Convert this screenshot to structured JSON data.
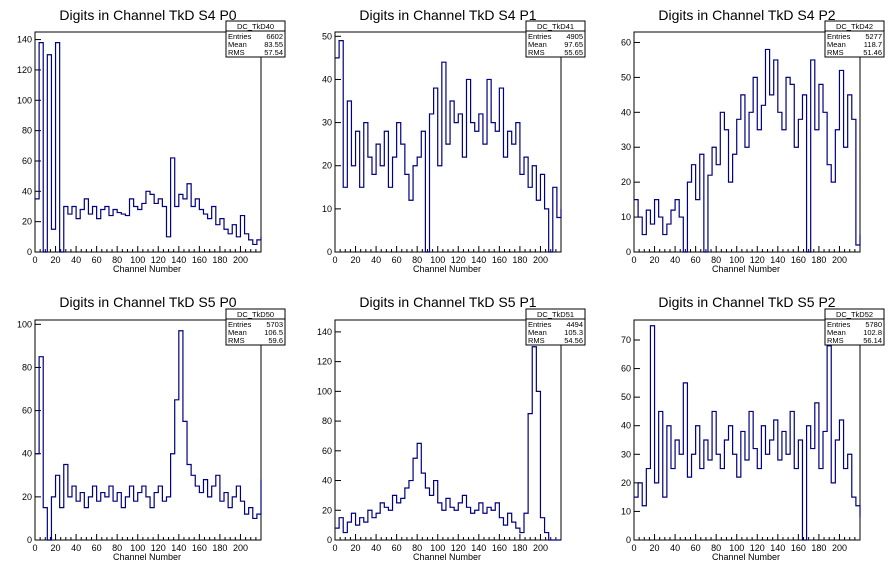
{
  "colors": {
    "line": "#000080",
    "axis": "#000000",
    "background": "#ffffff"
  },
  "chart_data": [
    {
      "type": "line",
      "title": "Digits in Channel TkD S4 P0",
      "xlabel": "Channel Number",
      "xlim": [
        0,
        220
      ],
      "ylim": [
        0,
        145
      ],
      "xticks": [
        0,
        20,
        40,
        60,
        80,
        100,
        120,
        140,
        160,
        180,
        200
      ],
      "yticks": [
        0,
        20,
        40,
        60,
        80,
        100,
        120,
        140
      ],
      "stats": {
        "name": "DC_TkD40",
        "entries_label": "Entries",
        "entries": "6602",
        "mean_label": "Mean",
        "mean": "83.55",
        "rms_label": "RMS",
        "rms": "57.54"
      },
      "series": [
        {
          "x": [
            0,
            4,
            8,
            12,
            16,
            20,
            24,
            28,
            32,
            36,
            40,
            44,
            48,
            52,
            56,
            60,
            64,
            68,
            72,
            76,
            80,
            84,
            88,
            92,
            96,
            100,
            104,
            108,
            112,
            116,
            120,
            124,
            128,
            132,
            136,
            140,
            144,
            148,
            152,
            156,
            160,
            164,
            168,
            172,
            176,
            180,
            184,
            188,
            192,
            196,
            200,
            204,
            208,
            212,
            216,
            220
          ],
          "y": [
            35,
            138,
            0,
            130,
            15,
            138,
            0,
            30,
            25,
            30,
            22,
            28,
            35,
            25,
            30,
            22,
            28,
            30,
            24,
            28,
            26,
            25,
            24,
            35,
            30,
            28,
            32,
            40,
            38,
            32,
            35,
            30,
            10,
            62,
            30,
            38,
            35,
            45,
            30,
            35,
            28,
            25,
            22,
            30,
            18,
            22,
            15,
            12,
            18,
            10,
            24,
            12,
            8,
            5,
            8,
            10
          ]
        }
      ]
    },
    {
      "type": "line",
      "title": "Digits in Channel TkD S4 P1",
      "xlabel": "Channel Number",
      "xlim": [
        0,
        220
      ],
      "ylim": [
        0,
        51
      ],
      "xticks": [
        0,
        20,
        40,
        60,
        80,
        100,
        120,
        140,
        160,
        180,
        200
      ],
      "yticks": [
        0,
        10,
        20,
        30,
        40,
        50
      ],
      "stats": {
        "name": "DC_TkD41",
        "entries_label": "Entries",
        "entries": "4905",
        "mean_label": "Mean",
        "mean": "97.65",
        "rms_label": "RMS",
        "rms": "55.65"
      },
      "series": [
        {
          "x": [
            0,
            4,
            8,
            12,
            16,
            20,
            24,
            28,
            32,
            36,
            40,
            44,
            48,
            52,
            56,
            60,
            64,
            68,
            72,
            76,
            80,
            84,
            88,
            92,
            96,
            100,
            104,
            108,
            112,
            116,
            120,
            124,
            128,
            132,
            136,
            140,
            144,
            148,
            152,
            156,
            160,
            164,
            168,
            172,
            176,
            180,
            184,
            188,
            192,
            196,
            200,
            204,
            208,
            212,
            216,
            220
          ],
          "y": [
            45,
            49,
            15,
            35,
            20,
            28,
            15,
            30,
            22,
            18,
            25,
            20,
            28,
            15,
            22,
            30,
            25,
            18,
            12,
            20,
            22,
            28,
            0,
            32,
            38,
            20,
            44,
            25,
            35,
            30,
            32,
            22,
            40,
            30,
            28,
            32,
            25,
            40,
            30,
            28,
            38,
            22,
            28,
            25,
            30,
            18,
            22,
            15,
            20,
            12,
            18,
            10,
            0,
            15,
            8,
            10
          ]
        }
      ]
    },
    {
      "type": "line",
      "title": "Digits in Channel TkD S4 P2",
      "xlabel": "Channel Number",
      "xlim": [
        0,
        220
      ],
      "ylim": [
        0,
        63
      ],
      "xticks": [
        0,
        20,
        40,
        60,
        80,
        100,
        120,
        140,
        160,
        180,
        200
      ],
      "yticks": [
        0,
        10,
        20,
        30,
        40,
        50,
        60
      ],
      "stats": {
        "name": "DC_TkD42",
        "entries_label": "Entries",
        "entries": "5277",
        "mean_label": "Mean",
        "mean": "118.7",
        "rms_label": "RMS",
        "rms": "51.46"
      },
      "series": [
        {
          "x": [
            0,
            4,
            8,
            12,
            16,
            20,
            24,
            28,
            32,
            36,
            40,
            44,
            48,
            52,
            56,
            60,
            64,
            68,
            72,
            76,
            80,
            84,
            88,
            92,
            96,
            100,
            104,
            108,
            112,
            116,
            120,
            124,
            128,
            132,
            136,
            140,
            144,
            148,
            152,
            156,
            160,
            164,
            168,
            172,
            176,
            180,
            184,
            188,
            192,
            196,
            200,
            204,
            208,
            212,
            216,
            220
          ],
          "y": [
            15,
            10,
            5,
            12,
            8,
            15,
            10,
            5,
            8,
            12,
            15,
            10,
            0,
            20,
            25,
            15,
            28,
            0,
            22,
            30,
            25,
            40,
            35,
            20,
            28,
            38,
            45,
            30,
            40,
            50,
            35,
            42,
            58,
            45,
            55,
            40,
            35,
            50,
            48,
            30,
            38,
            45,
            0,
            55,
            35,
            48,
            40,
            25,
            20,
            35,
            52,
            30,
            45,
            38,
            2,
            5
          ]
        }
      ]
    },
    {
      "type": "line",
      "title": "Digits in Channel TkD S5 P0",
      "xlabel": "Channel Number",
      "xlim": [
        0,
        220
      ],
      "ylim": [
        0,
        102
      ],
      "xticks": [
        0,
        20,
        40,
        60,
        80,
        100,
        120,
        140,
        160,
        180,
        200
      ],
      "yticks": [
        0,
        20,
        40,
        60,
        80,
        100
      ],
      "stats": {
        "name": "DC_TkD50",
        "entries_label": "Entries",
        "entries": "5703",
        "mean_label": "Mean",
        "mean": "106.5",
        "rms_label": "RMS",
        "rms": "59.6"
      },
      "series": [
        {
          "x": [
            0,
            4,
            8,
            12,
            16,
            20,
            24,
            28,
            32,
            36,
            40,
            44,
            48,
            52,
            56,
            60,
            64,
            68,
            72,
            76,
            80,
            84,
            88,
            92,
            96,
            100,
            104,
            108,
            112,
            116,
            120,
            124,
            128,
            132,
            136,
            140,
            144,
            148,
            152,
            156,
            160,
            164,
            168,
            172,
            176,
            180,
            184,
            188,
            192,
            196,
            200,
            204,
            208,
            212,
            216,
            220
          ],
          "y": [
            40,
            85,
            15,
            0,
            20,
            30,
            15,
            35,
            20,
            25,
            18,
            22,
            15,
            20,
            25,
            18,
            22,
            20,
            25,
            18,
            22,
            15,
            20,
            25,
            18,
            22,
            25,
            20,
            15,
            22,
            25,
            18,
            20,
            40,
            65,
            97,
            55,
            35,
            30,
            25,
            22,
            28,
            20,
            25,
            30,
            18,
            22,
            15,
            20,
            25,
            18,
            12,
            15,
            10,
            12,
            28
          ]
        }
      ]
    },
    {
      "type": "line",
      "title": "Digits in Channel TkD S5 P1",
      "xlabel": "Channel Number",
      "xlim": [
        0,
        220
      ],
      "ylim": [
        0,
        148
      ],
      "xticks": [
        0,
        20,
        40,
        60,
        80,
        100,
        120,
        140,
        160,
        180,
        200
      ],
      "yticks": [
        0,
        20,
        40,
        60,
        80,
        100,
        120,
        140
      ],
      "stats": {
        "name": "DC_TkD51",
        "entries_label": "Entries",
        "entries": "4494",
        "mean_label": "Mean",
        "mean": "105.3",
        "rms_label": "RMS",
        "rms": "54.56"
      },
      "series": [
        {
          "x": [
            0,
            4,
            8,
            12,
            16,
            20,
            24,
            28,
            32,
            36,
            40,
            44,
            48,
            52,
            56,
            60,
            64,
            68,
            72,
            76,
            80,
            84,
            88,
            92,
            96,
            100,
            104,
            108,
            112,
            116,
            120,
            124,
            128,
            132,
            136,
            140,
            144,
            148,
            152,
            156,
            160,
            164,
            168,
            172,
            176,
            180,
            184,
            188,
            192,
            196,
            200,
            204,
            208,
            212,
            216,
            220
          ],
          "y": [
            8,
            15,
            5,
            12,
            18,
            10,
            15,
            12,
            20,
            15,
            18,
            25,
            22,
            20,
            30,
            25,
            28,
            35,
            40,
            55,
            65,
            45,
            35,
            30,
            40,
            25,
            20,
            28,
            22,
            20,
            25,
            30,
            22,
            18,
            20,
            25,
            18,
            22,
            20,
            25,
            15,
            10,
            18,
            12,
            8,
            5,
            18,
            85,
            130,
            100,
            15,
            5,
            0,
            0,
            0,
            0
          ]
        }
      ]
    },
    {
      "type": "line",
      "title": "Digits in Channel TkD S5 P2",
      "xlabel": "Channel Number",
      "xlim": [
        0,
        220
      ],
      "ylim": [
        0,
        77
      ],
      "xticks": [
        0,
        20,
        40,
        60,
        80,
        100,
        120,
        140,
        160,
        180,
        200
      ],
      "yticks": [
        0,
        10,
        20,
        30,
        40,
        50,
        60,
        70
      ],
      "stats": {
        "name": "DC_TkD52",
        "entries_label": "Entries",
        "entries": "5780",
        "mean_label": "Mean",
        "mean": "102.8",
        "rms_label": "RMS",
        "rms": "56.14"
      },
      "series": [
        {
          "x": [
            0,
            4,
            8,
            12,
            16,
            20,
            24,
            28,
            32,
            36,
            40,
            44,
            48,
            52,
            56,
            60,
            64,
            68,
            72,
            76,
            80,
            84,
            88,
            92,
            96,
            100,
            104,
            108,
            112,
            116,
            120,
            124,
            128,
            132,
            136,
            140,
            144,
            148,
            152,
            156,
            160,
            164,
            168,
            172,
            176,
            180,
            184,
            188,
            192,
            196,
            200,
            204,
            208,
            212,
            216,
            220
          ],
          "y": [
            15,
            20,
            12,
            25,
            75,
            20,
            45,
            15,
            40,
            25,
            35,
            30,
            55,
            22,
            30,
            40,
            25,
            35,
            28,
            45,
            30,
            25,
            35,
            40,
            30,
            22,
            38,
            28,
            45,
            32,
            25,
            40,
            30,
            35,
            42,
            28,
            38,
            30,
            45,
            25,
            35,
            0,
            40,
            32,
            48,
            25,
            38,
            68,
            20,
            35,
            42,
            25,
            30,
            15,
            12,
            8
          ]
        }
      ]
    }
  ]
}
